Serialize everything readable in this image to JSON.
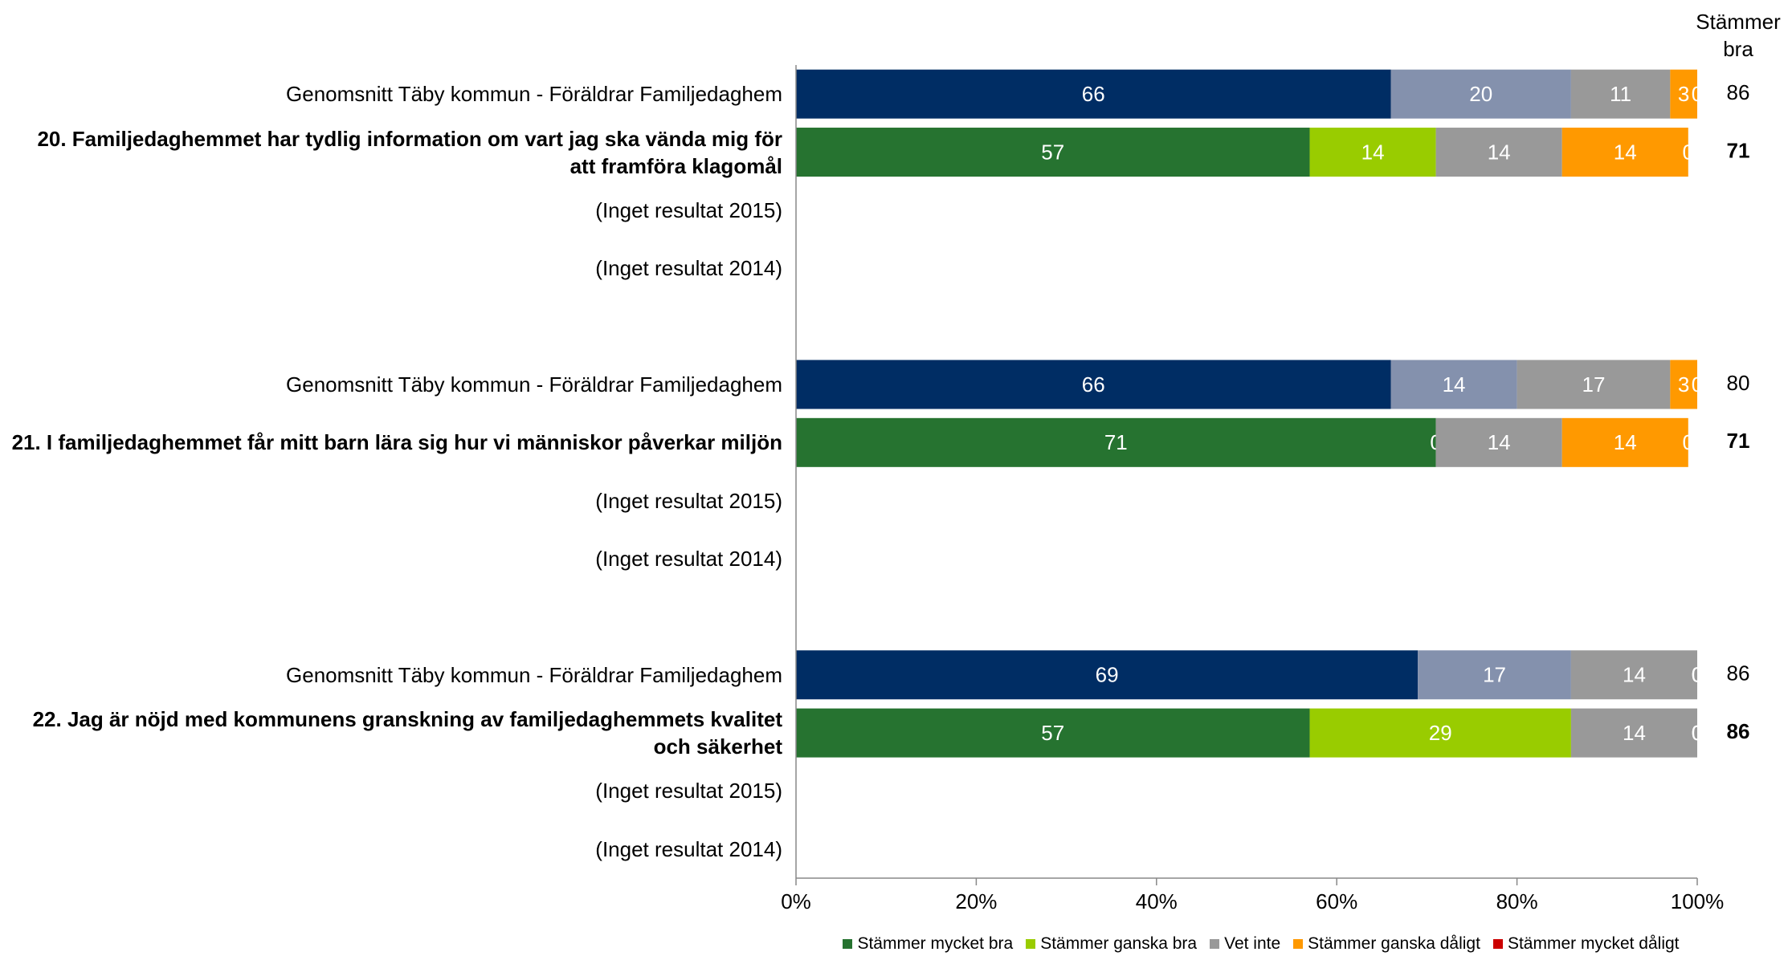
{
  "chart_data": {
    "type": "stacked-bar-horizontal",
    "categories": [
      "Genomsnitt Täby kommun - Föräldrar Familjedaghem",
      "20. Familjedaghemmet har tydlig information om vart jag ska vända mig för att framföra klagomål",
      "(Inget resultat 2015)",
      "(Inget resultat 2014)",
      "Genomsnitt Täby kommun - Föräldrar Familjedaghem",
      "21. I familjedaghemmet får mitt barn lära sig hur vi människor påverkar miljön",
      "(Inget resultat 2015)",
      "(Inget resultat 2014)",
      "Genomsnitt Täby kommun - Föräldrar Familjedaghem",
      "22. Jag är nöjd med kommunens granskning av familjedaghemmets kvalitet och säkerhet",
      "(Inget resultat 2015)",
      "(Inget resultat 2014)"
    ],
    "average_rows": [
      0,
      4,
      8
    ],
    "series": [
      {
        "name": "Stämmer mycket bra",
        "color": "#267330",
        "average_color": "#002d64",
        "values": [
          66,
          57,
          null,
          null,
          66,
          71,
          null,
          null,
          69,
          57,
          null,
          null
        ]
      },
      {
        "name": "Stämmer ganska bra",
        "color": "#99cc00",
        "average_color": "#8491ad",
        "values": [
          20,
          14,
          null,
          null,
          14,
          0,
          null,
          null,
          17,
          29,
          null,
          null
        ]
      },
      {
        "name": "Vet inte",
        "color": "#999999",
        "average_color": "#999999",
        "values": [
          11,
          14,
          null,
          null,
          17,
          14,
          null,
          null,
          14,
          14,
          null,
          null
        ]
      },
      {
        "name": "Stämmer ganska dåligt",
        "color": "#ff9900",
        "average_color": "#ff9900",
        "values": [
          3,
          14,
          null,
          null,
          3,
          14,
          null,
          null,
          0,
          0,
          null,
          null
        ]
      },
      {
        "name": "Stämmer mycket dåligt",
        "color": "#cc0000",
        "average_color": "#cc0000",
        "values": [
          0,
          0,
          null,
          null,
          0,
          0,
          null,
          null,
          0,
          0,
          null,
          null
        ]
      }
    ],
    "right_column": {
      "title": "Stämmer bra",
      "values": [
        86,
        71,
        null,
        null,
        80,
        71,
        null,
        null,
        86,
        86,
        null,
        null
      ]
    },
    "xlim": [
      0,
      100
    ],
    "xticks": [
      {
        "value": 0,
        "label": "0%"
      },
      {
        "value": 20,
        "label": "20%"
      },
      {
        "value": 40,
        "label": "40%"
      },
      {
        "value": 60,
        "label": "60%"
      },
      {
        "value": 80,
        "label": "80%"
      },
      {
        "value": 100,
        "label": "100%"
      }
    ],
    "legend": "bottom"
  }
}
